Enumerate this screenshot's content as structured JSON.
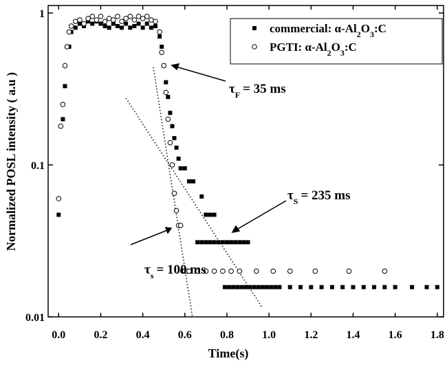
{
  "chart_data": {
    "type": "scatter",
    "x_label": "Time(s)",
    "y_label": "Normalized POSL intensity ( a.u )",
    "xlim": [
      -0.05,
      1.83
    ],
    "ylim": [
      0.01,
      1.12
    ],
    "log_y": true,
    "xticks": [
      {
        "value": 0,
        "label": "0.0"
      },
      0.2,
      0.4,
      0.6,
      0.8,
      {
        "value": 1,
        "label": "1.0"
      },
      1.2,
      1.4,
      1.6,
      1.8
    ],
    "yticks": [
      0.01,
      0.1,
      1
    ],
    "legend": "upper right",
    "series": [
      {
        "name": "commercial: α-Al2O3:C",
        "marker": "square",
        "color": "#000000",
        "x": [
          0.0,
          0.02,
          0.03,
          0.05,
          0.06,
          0.08,
          0.1,
          0.12,
          0.14,
          0.16,
          0.18,
          0.2,
          0.22,
          0.24,
          0.26,
          0.28,
          0.3,
          0.32,
          0.34,
          0.36,
          0.38,
          0.4,
          0.42,
          0.44,
          0.46,
          0.48,
          0.49,
          0.5,
          0.51,
          0.52,
          0.53,
          0.54,
          0.55,
          0.56,
          0.57,
          0.58,
          0.6,
          0.62,
          0.64,
          0.68,
          0.7,
          0.72,
          0.74,
          0.66,
          0.68,
          0.7,
          0.72,
          0.74,
          0.76,
          0.78,
          0.8,
          0.82,
          0.84,
          0.86,
          0.88,
          0.9,
          0.79,
          0.81,
          0.83,
          0.85,
          0.87,
          0.89,
          0.91,
          0.93,
          0.95,
          0.97,
          0.99,
          1.01,
          1.03,
          1.05,
          1.1,
          1.15,
          1.2,
          1.25,
          1.3,
          1.35,
          1.4,
          1.45,
          1.5,
          1.55,
          1.6,
          1.68,
          1.75,
          1.8
        ],
        "values": [
          0.047,
          0.2,
          0.33,
          0.6,
          0.75,
          0.8,
          0.85,
          0.82,
          0.88,
          0.85,
          0.88,
          0.85,
          0.82,
          0.8,
          0.85,
          0.82,
          0.8,
          0.85,
          0.8,
          0.82,
          0.85,
          0.8,
          0.85,
          0.8,
          0.82,
          0.7,
          0.6,
          0.45,
          0.35,
          0.28,
          0.22,
          0.18,
          0.15,
          0.13,
          0.11,
          0.095,
          0.095,
          0.078,
          0.078,
          0.062,
          0.047,
          0.047,
          0.047,
          0.031,
          0.031,
          0.031,
          0.031,
          0.031,
          0.031,
          0.031,
          0.031,
          0.031,
          0.031,
          0.031,
          0.031,
          0.031,
          0.0157,
          0.0157,
          0.0157,
          0.0157,
          0.0157,
          0.0157,
          0.0157,
          0.0157,
          0.0157,
          0.0157,
          0.0157,
          0.0157,
          0.0157,
          0.0157,
          0.0157,
          0.0157,
          0.0157,
          0.0157,
          0.0157,
          0.0157,
          0.0157,
          0.0157,
          0.0157,
          0.0157,
          0.0157,
          0.0157,
          0.0157,
          0.0157
        ]
      },
      {
        "name": "PGTI: α-Al2O3:C",
        "marker": "circle",
        "color": "#000000",
        "x": [
          0.0,
          0.01,
          0.02,
          0.03,
          0.04,
          0.05,
          0.06,
          0.08,
          0.1,
          0.12,
          0.14,
          0.16,
          0.18,
          0.2,
          0.22,
          0.24,
          0.26,
          0.28,
          0.3,
          0.32,
          0.34,
          0.36,
          0.38,
          0.4,
          0.42,
          0.44,
          0.46,
          0.48,
          0.49,
          0.5,
          0.51,
          0.52,
          0.53,
          0.54,
          0.55,
          0.56,
          0.57,
          0.58,
          0.59,
          0.6,
          0.61,
          0.62,
          0.66,
          0.7,
          0.74,
          0.78,
          0.82,
          0.86,
          0.94,
          1.02,
          1.1,
          1.22,
          1.38,
          1.55
        ],
        "values": [
          0.06,
          0.18,
          0.25,
          0.45,
          0.6,
          0.75,
          0.82,
          0.88,
          0.9,
          0.85,
          0.92,
          0.95,
          0.9,
          0.95,
          0.88,
          0.92,
          0.9,
          0.95,
          0.88,
          0.92,
          0.95,
          0.9,
          0.95,
          0.92,
          0.95,
          0.9,
          0.88,
          0.75,
          0.55,
          0.45,
          0.3,
          0.2,
          0.14,
          0.1,
          0.065,
          0.05,
          0.04,
          0.04,
          0.02,
          0.02,
          0.02,
          0.02,
          0.02,
          0.02,
          0.02,
          0.02,
          0.02,
          0.02,
          0.02,
          0.02,
          0.02,
          0.02,
          0.02,
          0.02
        ]
      }
    ],
    "fit_lines": [
      {
        "x": [
          0.45,
          0.636
        ],
        "values": [
          0.44,
          0.01
        ]
      },
      {
        "x": [
          0.32,
          0.965
        ],
        "values": [
          0.275,
          0.0117
        ]
      }
    ],
    "annotations": [
      {
        "parts": [
          "τ",
          "F",
          "= 35 ms"
        ]
      },
      {
        "parts": [
          "τ",
          "S",
          "= 235 ms"
        ]
      },
      {
        "parts": [
          "τ",
          "s",
          "= 100 ms"
        ]
      }
    ]
  }
}
